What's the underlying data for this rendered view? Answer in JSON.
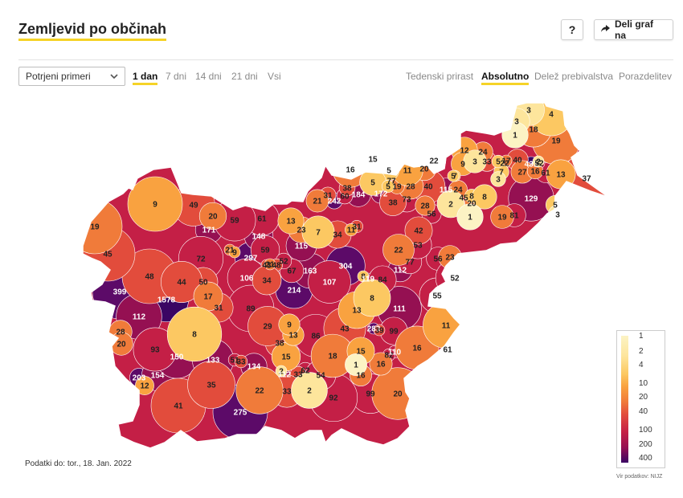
{
  "header": {
    "title": "Zemljevid po občinah",
    "help_label": "?",
    "share_label": "Deli graf na"
  },
  "controls": {
    "case_type_selected": "Potrjeni primeri",
    "period_tabs": [
      "1 dan",
      "7 dni",
      "14 dni",
      "21 dni",
      "Vsi"
    ],
    "period_active": 0,
    "measure_tabs": [
      "Tedenski prirast",
      "Absolutno",
      "Delež prebivalstva",
      "Porazdelitev"
    ],
    "measure_active": 1
  },
  "footer": {
    "data_date": "Podatki do: tor., 18. Jan. 2022",
    "source": "Vir podatkov: NIJZ"
  },
  "legend": {
    "labels": [
      "1",
      "2",
      "4",
      "10",
      "20",
      "40",
      "100",
      "200",
      "400"
    ]
  },
  "colors": {
    "accent": "#f5d327",
    "scale": [
      "#fcf3c4",
      "#fde59c",
      "#fcc862",
      "#f9a240",
      "#f07b3a",
      "#e24c3c",
      "#c41f46",
      "#951052",
      "#5c0a68",
      "#3a0563"
    ]
  },
  "map": {
    "municipality_values": [
      3,
      4,
      3,
      18,
      1,
      19,
      12,
      24,
      5,
      22,
      15,
      5,
      11,
      20,
      22,
      5,
      9,
      3,
      33,
      17,
      40,
      431,
      52,
      13,
      37,
      7,
      16,
      77,
      5,
      5,
      19,
      28,
      40,
      115,
      24,
      8,
      3,
      7,
      27,
      16,
      2,
      61,
      184,
      21,
      31,
      242,
      38,
      60,
      172,
      38,
      73,
      28,
      56,
      45,
      2,
      1,
      20,
      8,
      19,
      81,
      129,
      5,
      3,
      9,
      49,
      20,
      59,
      61,
      13,
      23,
      7,
      34,
      11,
      31,
      19,
      45,
      399,
      72,
      171,
      9,
      148,
      297,
      106,
      21,
      52,
      21,
      59,
      43,
      48,
      34,
      214,
      115,
      67,
      163,
      107,
      304,
      8,
      119,
      84,
      22,
      42,
      53,
      56,
      23,
      52,
      48,
      1578,
      44,
      50,
      17,
      31,
      89,
      29,
      9,
      13,
      86,
      43,
      13,
      8,
      283,
      99,
      111,
      112,
      77,
      55,
      116,
      112,
      93,
      12,
      8,
      150,
      133,
      51,
      134,
      38,
      15,
      62,
      18,
      15,
      16,
      39,
      16,
      82,
      110,
      16,
      11,
      61,
      28,
      20,
      203,
      154,
      41,
      35,
      33,
      22,
      2,
      112,
      33,
      54,
      1,
      99,
      20,
      275,
      33,
      2,
      92
    ]
  }
}
